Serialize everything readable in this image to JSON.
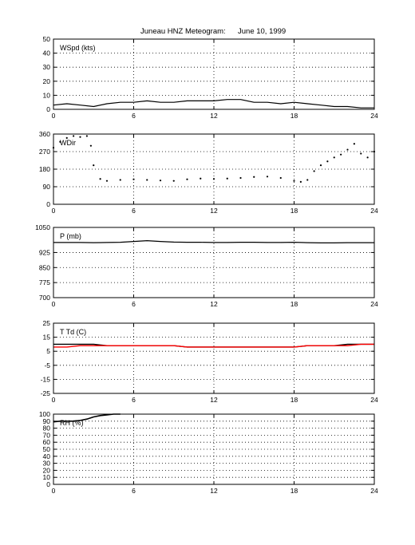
{
  "title": {
    "main": "Juneau HNZ Meteogram:",
    "date": "June 10, 1999"
  },
  "colors": {
    "axis": "#000000",
    "grid": "#000000",
    "series": "#000000",
    "dewpoint": "#ff0000"
  },
  "chart_data": [
    {
      "type": "line",
      "title": "",
      "ylabel": "WSpd (kts)",
      "xlim": [
        0,
        24
      ],
      "ylim": [
        0,
        50
      ],
      "xticks": [
        "0",
        "6",
        "12",
        "18",
        "24"
      ],
      "yticks": [
        "0",
        "10",
        "20",
        "30",
        "40",
        "50"
      ],
      "grid": true,
      "series": [
        {
          "x": [
            0,
            1,
            2,
            3,
            4,
            5,
            6,
            7,
            8,
            9,
            10,
            11,
            12,
            13,
            14,
            15,
            16,
            17,
            18,
            19,
            20,
            21,
            22,
            23,
            24
          ],
          "y": [
            3,
            4,
            3,
            2,
            4,
            5,
            5,
            6,
            5,
            5,
            6,
            6,
            6,
            7,
            7,
            5,
            5,
            4,
            5,
            4,
            3,
            2,
            2,
            1,
            1
          ]
        }
      ]
    },
    {
      "type": "scatter",
      "title": "",
      "ylabel": "WDir",
      "xlim": [
        0,
        24
      ],
      "ylim": [
        0,
        360
      ],
      "xticks": [
        "0",
        "6",
        "12",
        "18",
        "24"
      ],
      "yticks": [
        "0",
        "90",
        "180",
        "270",
        "360"
      ],
      "grid": true,
      "series": [
        {
          "x": [
            0,
            0.5,
            1,
            1.5,
            2,
            2.5,
            2.8,
            3,
            3.5,
            4,
            5,
            6,
            7,
            8,
            9,
            10,
            11,
            12,
            13,
            14,
            15,
            16,
            17,
            18,
            18.5,
            19,
            19.5,
            20,
            20.5,
            21,
            21.5,
            22,
            22.5,
            23,
            23.5,
            24
          ],
          "y": [
            290,
            320,
            340,
            350,
            345,
            350,
            300,
            200,
            130,
            120,
            125,
            128,
            125,
            122,
            120,
            128,
            132,
            130,
            132,
            135,
            140,
            142,
            135,
            120,
            115,
            125,
            170,
            200,
            220,
            240,
            255,
            280,
            310,
            260,
            240,
            270
          ]
        }
      ]
    },
    {
      "type": "line",
      "title": "",
      "ylabel": "P (mb)",
      "xlim": [
        0,
        24
      ],
      "ylim": [
        700,
        1050
      ],
      "xticks": [
        "0",
        "6",
        "12",
        "18",
        "24"
      ],
      "yticks": [
        "700",
        "775",
        "850",
        "925",
        "1050"
      ],
      "grid": true,
      "series": [
        {
          "x": [
            0,
            1,
            2,
            3,
            4,
            5,
            6,
            7,
            8,
            9,
            10,
            11,
            12,
            13,
            14,
            15,
            16,
            17,
            18,
            19,
            20,
            21,
            22,
            23,
            24
          ],
          "y": [
            975,
            975,
            975,
            974,
            975,
            976,
            980,
            984,
            980,
            977,
            976,
            976,
            975,
            975,
            976,
            976,
            975,
            975,
            976,
            974,
            973,
            973,
            974,
            974,
            974
          ]
        }
      ]
    },
    {
      "type": "line",
      "title": "",
      "ylabel": "T Td (C)",
      "xlim": [
        0,
        24
      ],
      "ylim": [
        -25,
        25
      ],
      "xticks": [
        "0",
        "6",
        "12",
        "18",
        "24"
      ],
      "yticks": [
        "-25",
        "-15",
        "-5",
        "5",
        "15",
        "25"
      ],
      "grid": true,
      "series": [
        {
          "x": [
            0,
            1,
            2,
            3,
            4,
            5,
            6,
            7,
            8,
            9,
            10,
            11,
            12,
            13,
            14,
            15,
            16,
            17,
            18,
            19,
            20,
            21,
            22,
            23,
            24
          ],
          "y": [
            10,
            10,
            10,
            10,
            9,
            9,
            9,
            9,
            9,
            9,
            8,
            8,
            8,
            8,
            8,
            8,
            8,
            8,
            8,
            9,
            9,
            9,
            10,
            10,
            10
          ]
        },
        {
          "x": [
            0,
            1,
            2,
            3,
            4,
            5,
            6,
            7,
            8,
            9,
            10,
            11,
            12,
            13,
            14,
            15,
            16,
            17,
            18,
            19,
            20,
            21,
            22,
            23,
            24
          ],
          "y": [
            8,
            8,
            9,
            9,
            9,
            9,
            9,
            9,
            9,
            9,
            8,
            8,
            8,
            8,
            8,
            8,
            8,
            8,
            8,
            9,
            9,
            9,
            9,
            10,
            10
          ]
        }
      ]
    },
    {
      "type": "line",
      "title": "",
      "ylabel": "RH (%)",
      "xlim": [
        0,
        24
      ],
      "ylim": [
        0,
        100
      ],
      "xticks": [
        "0",
        "6",
        "12",
        "18",
        "24"
      ],
      "yticks": [
        "0",
        "10",
        "20",
        "30",
        "40",
        "50",
        "60",
        "70",
        "80",
        "90",
        "100"
      ],
      "grid": true,
      "series": [
        {
          "x": [
            0,
            0.5,
            1,
            1.5,
            2,
            2.5,
            3,
            3.5,
            4,
            4.5,
            5
          ],
          "y": [
            89,
            90,
            90,
            90,
            91,
            93,
            96,
            98,
            99,
            100,
            100
          ]
        }
      ]
    }
  ]
}
